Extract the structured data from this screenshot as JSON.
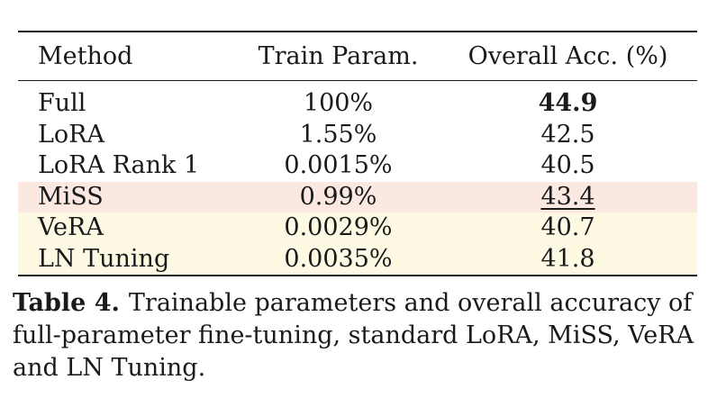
{
  "table": {
    "headers": {
      "method": "Method",
      "train_param": "Train Param.",
      "overall_acc": "Overall Acc. (%)"
    },
    "rows": [
      {
        "method": "Full",
        "train_param": "100%",
        "overall_acc": "44.9",
        "style": "bold"
      },
      {
        "method": "LoRA",
        "train_param": "1.55%",
        "overall_acc": "42.5"
      },
      {
        "method": "LoRA Rank 1",
        "train_param": "0.0015%",
        "overall_acc": "40.5"
      },
      {
        "method": "MiSS",
        "train_param": "0.99%",
        "overall_acc": "43.4",
        "style": "underline",
        "highlight": "#fbe8e0"
      },
      {
        "method": "VeRA",
        "train_param": "0.0029%",
        "overall_acc": "40.7",
        "highlight": "#fdf9e3"
      },
      {
        "method": "LN Tuning",
        "train_param": "0.0035%",
        "overall_acc": "41.8",
        "highlight": "#fdf9e3"
      }
    ]
  },
  "caption": {
    "label": "Table 4.",
    "text": "Trainable parameters and overall accuracy of full-parameter fine-tuning, standard LoRA, MiSS, VeRA and LN Tuning."
  }
}
